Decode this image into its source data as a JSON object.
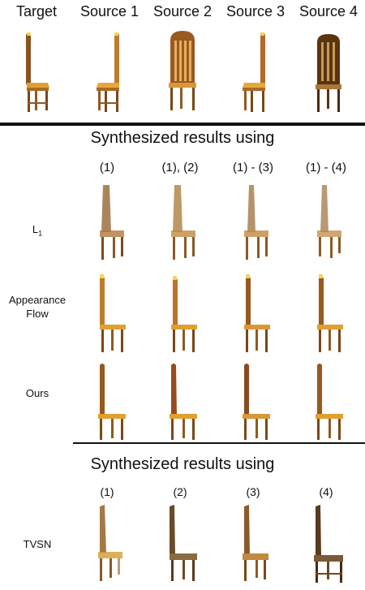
{
  "header": {
    "columns": [
      "Target",
      "Source 1",
      "Source 2",
      "Source 3",
      "Source 4"
    ]
  },
  "section1": {
    "title": "Synthesized results using",
    "columns": [
      "(1)",
      "(1), (2)",
      "(1) - (3)",
      "(1) - (4)"
    ],
    "rows": [
      {
        "label_main": "L",
        "label_sub": "1"
      },
      {
        "label_line1": "Appearance",
        "label_line2": "Flow"
      },
      {
        "label": "Ours"
      }
    ]
  },
  "section2": {
    "title": "Synthesized results using",
    "columns": [
      "(1)",
      "(2)",
      "(3)",
      "(4)"
    ],
    "rows": [
      {
        "label": "TVSN"
      }
    ]
  }
}
